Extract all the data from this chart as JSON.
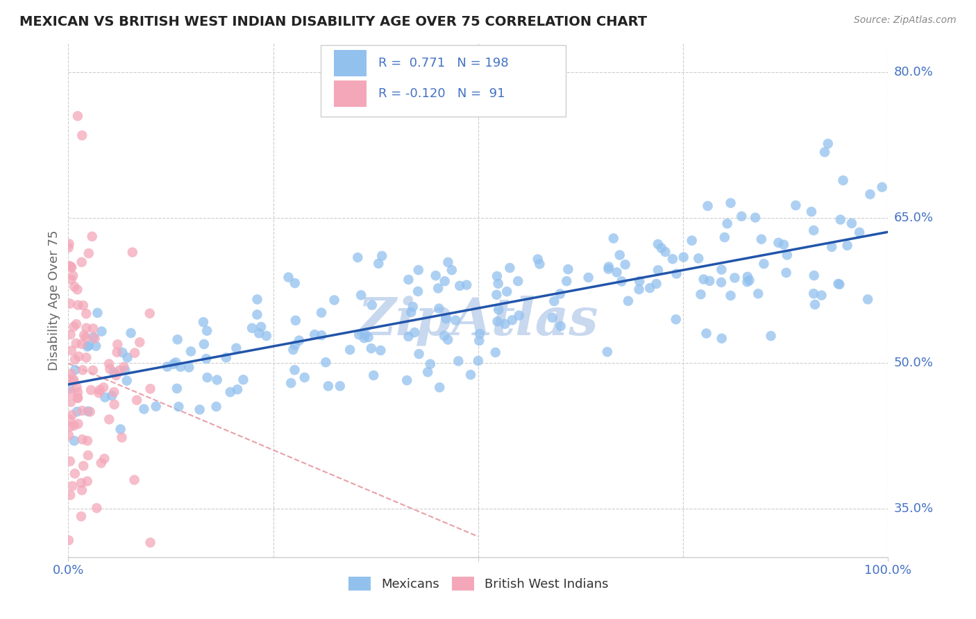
{
  "title": "MEXICAN VS BRITISH WEST INDIAN DISABILITY AGE OVER 75 CORRELATION CHART",
  "source": "Source: ZipAtlas.com",
  "ylabel": "Disability Age Over 75",
  "xlim": [
    0.0,
    1.0
  ],
  "ylim": [
    0.3,
    0.83
  ],
  "yticks": [
    0.35,
    0.5,
    0.65,
    0.8
  ],
  "ytick_labels": [
    "35.0%",
    "50.0%",
    "65.0%",
    "80.0%"
  ],
  "blue_R": 0.771,
  "blue_N": 198,
  "pink_R": -0.12,
  "pink_N": 91,
  "blue_color": "#92C1EE",
  "pink_color": "#F4A7B9",
  "blue_line_color": "#2255AA",
  "pink_line_color": "#E8A0A8",
  "title_color": "#222222",
  "axis_label_color": "#4472C4",
  "ylabel_color": "#666666",
  "watermark_color": "#C8D8EE",
  "background_color": "#FFFFFF",
  "grid_color": "#CCCCCC",
  "legend_text_color": "#333333",
  "legend_value_color": "#4472C4",
  "seed": 7
}
